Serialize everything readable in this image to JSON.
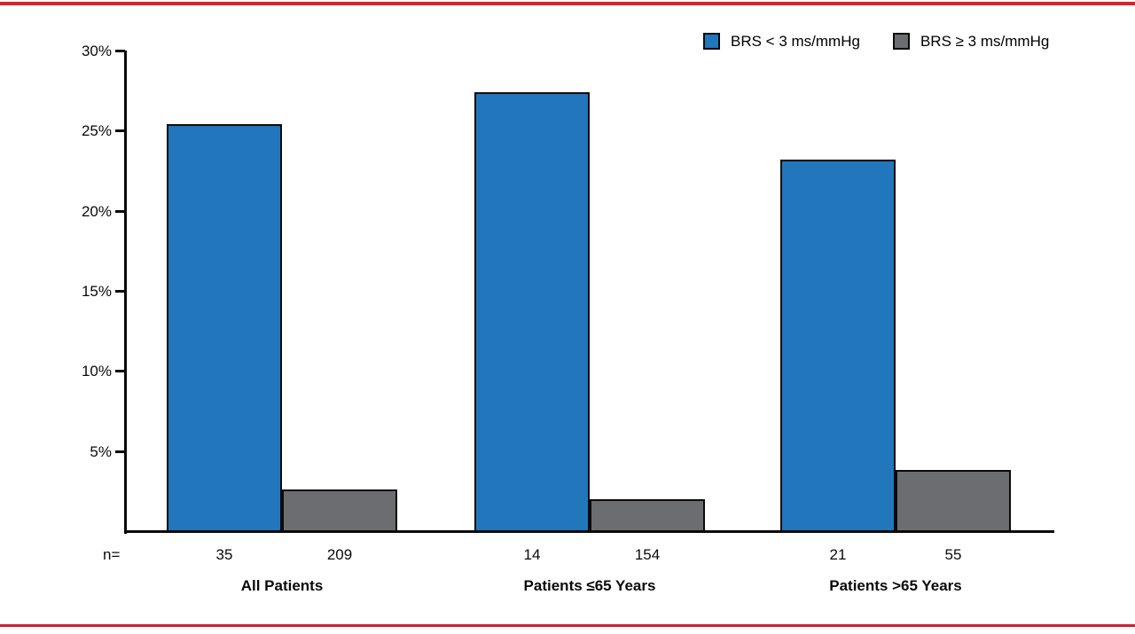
{
  "page": {
    "top_rule_color": "#e01f26",
    "bottom_rule_color": "#c92034",
    "background": "#ffffff"
  },
  "chart_data": {
    "type": "bar",
    "title": "",
    "xlabel": "",
    "ylabel": "",
    "ylim": [
      0,
      30
    ],
    "yticks": [
      5,
      10,
      15,
      20,
      25,
      30
    ],
    "ytick_suffix": "%",
    "grid": false,
    "legend_position": "top-right",
    "n_label": "n=",
    "categories": [
      "All Patients",
      "Patients ≤65 Years",
      "Patients >65 Years"
    ],
    "series": [
      {
        "name": "BRS < 3 ms/mmHg",
        "color": "#2176bc",
        "values": [
          25.4,
          27.4,
          23.2
        ],
        "n": [
          35,
          14,
          21
        ]
      },
      {
        "name": "BRS ≥ 3 ms/mmHg",
        "color": "#6c6d70",
        "values": [
          2.6,
          2.0,
          3.8
        ],
        "n": [
          209,
          154,
          55
        ]
      }
    ]
  }
}
